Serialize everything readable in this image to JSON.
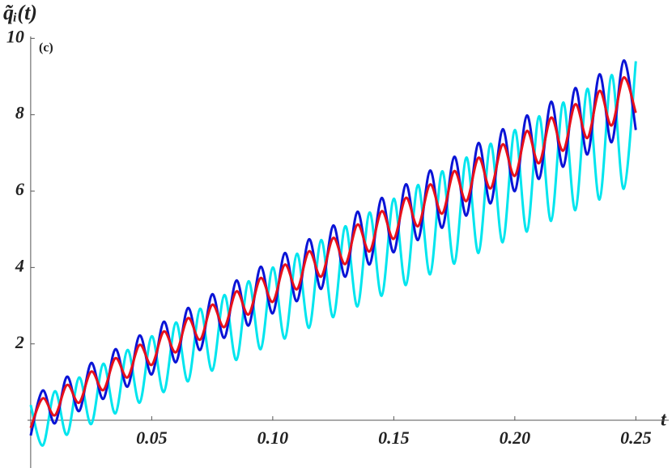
{
  "chart_data": {
    "type": "line",
    "annotation": "(c)",
    "x_label": "t",
    "y_label": "q̃ᵢ(t)",
    "x": [
      0,
      0.005,
      0.01,
      0.015,
      0.02,
      0.025,
      0.03,
      0.035,
      0.04,
      0.045,
      0.05,
      0.055,
      0.06,
      0.065,
      0.07,
      0.075,
      0.08,
      0.085,
      0.09,
      0.095,
      0.1,
      0.105,
      0.11,
      0.115,
      0.12,
      0.125,
      0.13,
      0.135,
      0.14,
      0.145,
      0.15,
      0.155,
      0.16,
      0.165,
      0.17,
      0.175,
      0.18,
      0.185,
      0.19,
      0.195,
      0.2,
      0.205,
      0.21,
      0.215,
      0.22,
      0.225,
      0.23,
      0.235,
      0.24,
      0.245,
      0.25
    ],
    "series": [
      {
        "color": "#00e5ee",
        "values": [
          0.4,
          -0.66,
          0.76,
          -0.38,
          1.12,
          -0.1,
          1.48,
          0.18,
          1.84,
          0.46,
          2.2,
          0.74,
          2.56,
          1.02,
          2.92,
          1.3,
          3.28,
          1.58,
          3.64,
          1.86,
          4.0,
          2.14,
          4.36,
          2.42,
          4.72,
          2.7,
          5.08,
          2.98,
          5.44,
          3.26,
          5.8,
          3.54,
          6.16,
          3.82,
          6.52,
          4.1,
          6.88,
          4.38,
          7.24,
          4.66,
          7.6,
          4.94,
          7.96,
          5.22,
          8.32,
          5.5,
          8.68,
          5.78,
          9.04,
          6.06,
          9.4
        ]
      },
      {
        "color": "#0a14d6",
        "values": [
          -0.4,
          0.78,
          -0.08,
          1.14,
          0.24,
          1.5,
          0.56,
          1.86,
          0.88,
          2.22,
          1.2,
          2.58,
          1.52,
          2.94,
          1.84,
          3.3,
          2.16,
          3.66,
          2.48,
          4.02,
          2.8,
          4.38,
          3.12,
          4.74,
          3.44,
          5.1,
          3.76,
          5.46,
          4.08,
          5.82,
          4.4,
          6.18,
          4.72,
          6.54,
          5.04,
          6.9,
          5.36,
          7.26,
          5.68,
          7.62,
          6.0,
          7.98,
          6.32,
          8.34,
          6.64,
          8.7,
          6.96,
          9.06,
          7.28,
          9.42,
          7.6
        ]
      },
      {
        "color": "#e8101a",
        "values": [
          -0.2,
          0.575,
          0.13,
          0.925,
          0.46,
          1.275,
          0.79,
          1.625,
          1.12,
          1.975,
          1.45,
          2.325,
          1.78,
          2.675,
          2.11,
          3.025,
          2.44,
          3.375,
          2.77,
          3.725,
          3.1,
          4.075,
          3.43,
          4.425,
          3.76,
          4.775,
          4.09,
          5.125,
          4.42,
          5.475,
          4.75,
          5.825,
          5.08,
          6.175,
          5.41,
          6.525,
          5.74,
          6.875,
          6.07,
          7.225,
          6.4,
          7.575,
          6.73,
          7.925,
          7.06,
          8.275,
          7.39,
          8.625,
          7.72,
          8.975,
          8.05
        ]
      }
    ],
    "xlim": [
      -0.0013,
      0.2636
    ],
    "ylim": [
      -1.25,
      10.05
    ],
    "xticks": [
      0.05,
      {
        "value": 0.1,
        "label": "0.10"
      },
      0.15,
      {
        "value": 0.2,
        "label": "0.20"
      },
      0.25
    ],
    "yticks": [
      2,
      4,
      6,
      8,
      10
    ]
  }
}
